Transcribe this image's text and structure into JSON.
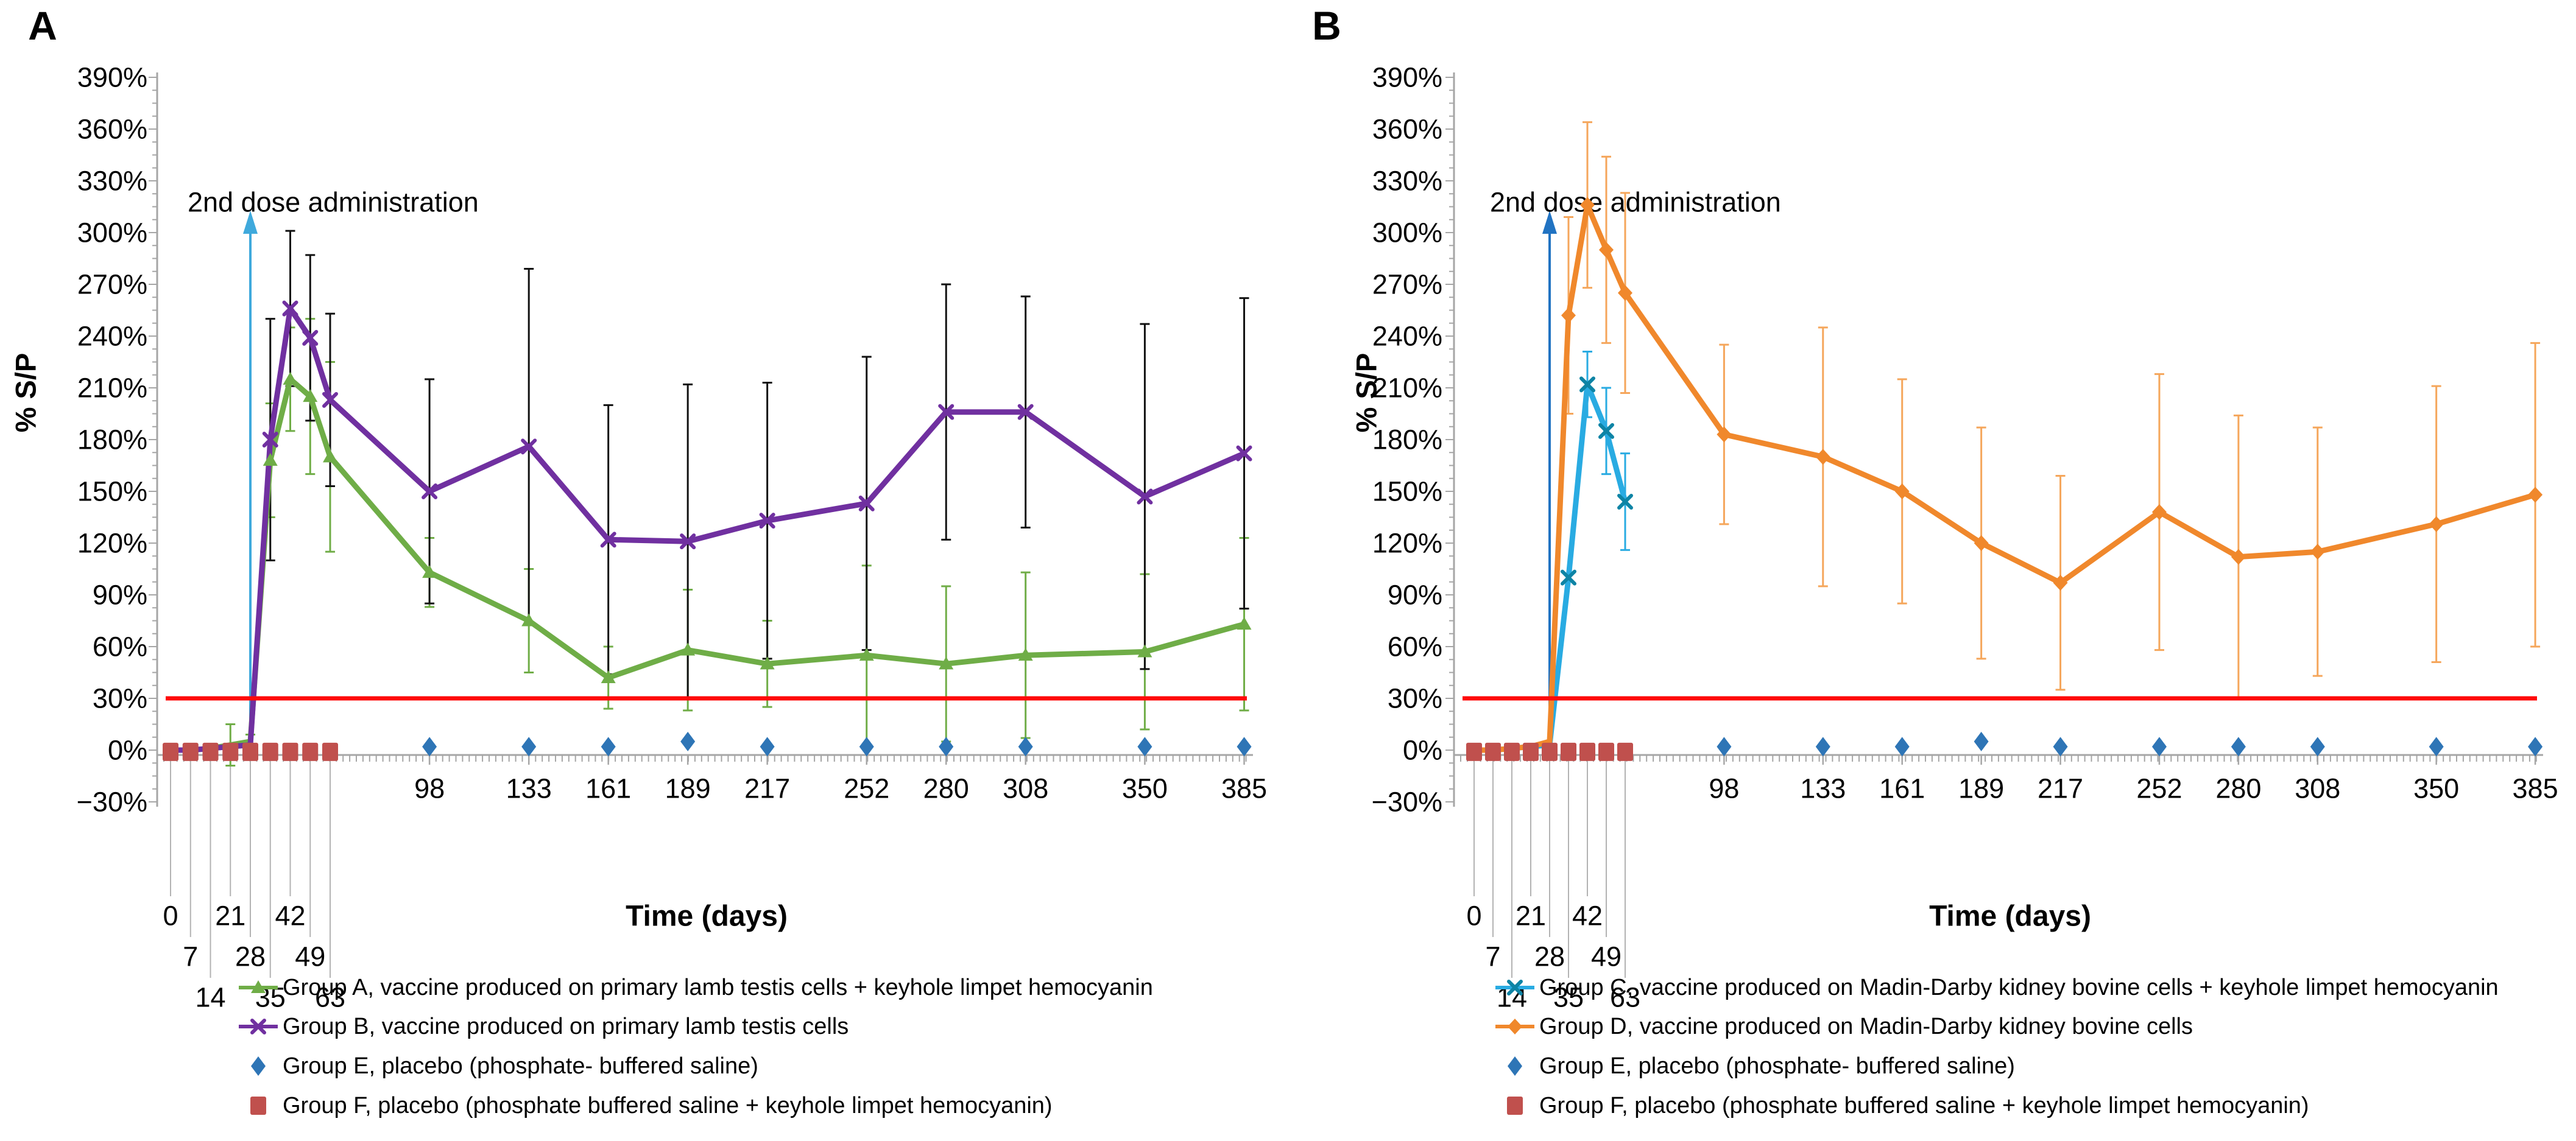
{
  "figure": {
    "background": "#ffffff",
    "axis_color": "#a6a6a6",
    "leader_line_color": "#b3b3b3",
    "threshold_color": "#ff0b0b"
  },
  "chart_data": [
    {
      "id": "A",
      "type": "line",
      "panel_label": "A",
      "xlabel": "Time (days)",
      "ylabel": "% S/P",
      "annotation": {
        "text": "2nd dose administration",
        "day": 28,
        "arrow_color": "#3fa9dc"
      },
      "threshold": {
        "value": 30,
        "color": "#ff0b0b"
      },
      "yaxis": {
        "min": -30,
        "max": 390,
        "major_step": 30,
        "minor_step": 7.5,
        "tick_suffix": "%"
      },
      "x_staggered": [
        0,
        7,
        14,
        21,
        28,
        35,
        42,
        49,
        63
      ],
      "x_flat": [
        98,
        133,
        161,
        189,
        217,
        252,
        280,
        308,
        350,
        385
      ],
      "series": [
        {
          "name": "Group A, vaccine produced on primary lamb testis cells + keyhole limpet hemocyanin",
          "color": "#6fad47",
          "err_color": "#70ad47",
          "marker": "triangle",
          "line": true,
          "days": [
            0,
            7,
            14,
            21,
            28,
            35,
            42,
            49,
            63,
            98,
            133,
            161,
            189,
            217,
            252,
            280,
            308,
            350,
            385
          ],
          "values": [
            0,
            0,
            1,
            3,
            5,
            168,
            215,
            205,
            170,
            103,
            75,
            42,
            58,
            50,
            55,
            50,
            55,
            57,
            73
          ],
          "err": [
            1,
            1,
            1,
            12,
            4,
            33,
            30,
            45,
            55,
            20,
            30,
            18,
            35,
            25,
            52,
            45,
            48,
            45,
            50
          ]
        },
        {
          "name": "Group B, vaccine produced on primary lamb testis cells",
          "color": "#7030a0",
          "err_color": "#111111",
          "marker": "x",
          "line": true,
          "days": [
            0,
            7,
            14,
            21,
            28,
            35,
            42,
            49,
            63,
            98,
            133,
            161,
            189,
            217,
            252,
            280,
            308,
            350,
            385
          ],
          "values": [
            0,
            0,
            1,
            2,
            3,
            180,
            256,
            239,
            203,
            150,
            176,
            122,
            121,
            133,
            143,
            196,
            196,
            147,
            172
          ],
          "err": [
            1,
            1,
            1,
            2,
            2,
            70,
            45,
            48,
            50,
            65,
            103,
            78,
            91,
            80,
            85,
            74,
            67,
            100,
            90
          ]
        },
        {
          "name": "Group E, placebo (phosphate- buffered saline)",
          "color": "#2e75b6",
          "marker": "diamond-big",
          "line": false,
          "days": [
            98,
            133,
            161,
            189,
            217,
            252,
            280,
            308,
            350,
            385
          ],
          "values": [
            2,
            2,
            2,
            5,
            2,
            2,
            2,
            2,
            2,
            2
          ],
          "err": null
        },
        {
          "name": "Group F, placebo (phosphate buffered saline + keyhole limpet hemocyanin)",
          "color": "#c0504d",
          "marker": "square",
          "line": false,
          "days": [
            0,
            7,
            14,
            21,
            28,
            35,
            42,
            49,
            63
          ],
          "values": [
            -1,
            -1,
            -1,
            -1,
            -1,
            -1,
            -1,
            -1,
            -1
          ],
          "err": null
        }
      ]
    },
    {
      "id": "B",
      "type": "line",
      "panel_label": "B",
      "xlabel": "Time (days)",
      "ylabel": "% S/P",
      "annotation": {
        "text": "2nd dose administration",
        "day": 28,
        "arrow_color": "#2173c2"
      },
      "threshold": {
        "value": 30,
        "color": "#ff0b0b"
      },
      "yaxis": {
        "min": -30,
        "max": 390,
        "major_step": 30,
        "minor_step": 7.5,
        "tick_suffix": "%"
      },
      "x_staggered": [
        0,
        7,
        14,
        21,
        28,
        35,
        42,
        49,
        63
      ],
      "x_flat": [
        98,
        133,
        161,
        189,
        217,
        252,
        280,
        308,
        350,
        385
      ],
      "series": [
        {
          "name": "Group C, vaccine produced on Madin-Darby kidney bovine cells + keyhole limpet hemocyanin",
          "color": "#29abe2",
          "err_color": "#29abe2",
          "marker": "x",
          "marker_stroke": "#0e84a5",
          "line": true,
          "days": [
            0,
            7,
            14,
            21,
            28,
            35,
            42,
            49,
            63
          ],
          "values": [
            0,
            0,
            1,
            2,
            3,
            100,
            212,
            185,
            144
          ],
          "err": [
            1,
            1,
            1,
            2,
            2,
            2,
            19,
            25,
            28
          ]
        },
        {
          "name": "Group D, vaccine produced on Madin-Darby kidney bovine cells",
          "color": "#f0882c",
          "err_color": "#f5a65b",
          "marker": "diamond",
          "line": true,
          "days": [
            0,
            7,
            14,
            21,
            28,
            35,
            42,
            49,
            63,
            98,
            133,
            161,
            189,
            217,
            252,
            280,
            308,
            350,
            385
          ],
          "values": [
            0,
            0,
            1,
            2,
            5,
            252,
            316,
            290,
            265,
            183,
            170,
            150,
            120,
            97,
            138,
            112,
            115,
            131,
            148
          ],
          "err": [
            1,
            1,
            1,
            2,
            3,
            57,
            48,
            54,
            58,
            52,
            75,
            65,
            67,
            62,
            80,
            82,
            72,
            80,
            88
          ]
        },
        {
          "name": "Group E, placebo (phosphate- buffered saline)",
          "color": "#2e75b6",
          "marker": "diamond-big",
          "line": false,
          "days": [
            98,
            133,
            161,
            189,
            217,
            252,
            280,
            308,
            350,
            385
          ],
          "values": [
            2,
            2,
            2,
            5,
            2,
            2,
            2,
            2,
            2,
            2
          ],
          "err": null
        },
        {
          "name": "Group F, placebo (phosphate buffered saline + keyhole limpet hemocyanin)",
          "color": "#c0504d",
          "marker": "square",
          "line": false,
          "days": [
            0,
            7,
            14,
            21,
            28,
            35,
            42,
            49,
            63
          ],
          "values": [
            -1,
            -1,
            -1,
            -1,
            -1,
            -1,
            -1,
            -1,
            -1
          ],
          "err": null
        }
      ]
    }
  ]
}
